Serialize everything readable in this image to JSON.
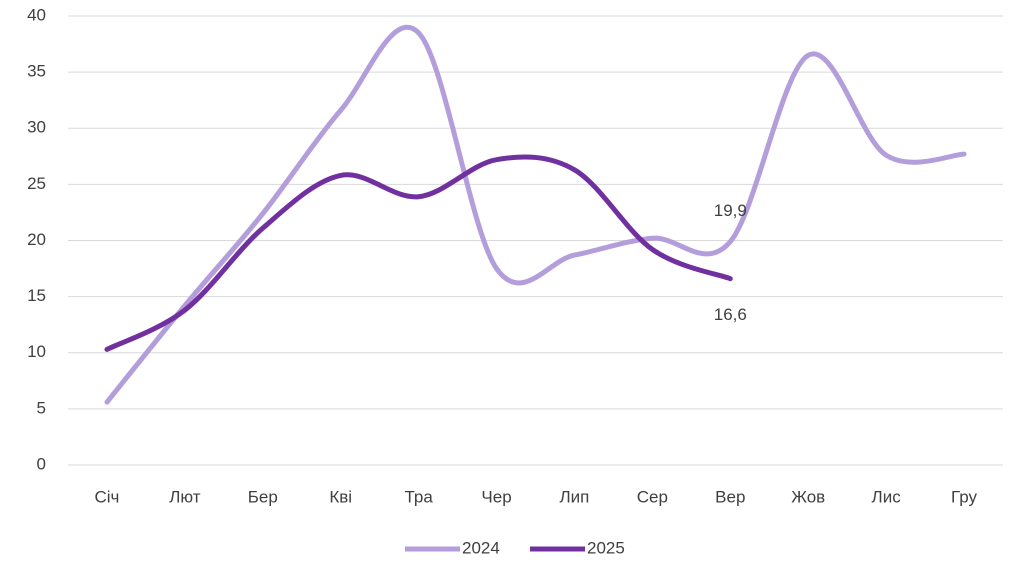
{
  "chart_data": {
    "type": "line",
    "categories": [
      "Січ",
      "Лют",
      "Бер",
      "Кві",
      "Тра",
      "Чер",
      "Лип",
      "Сер",
      "Вер",
      "Жов",
      "Лис",
      "Гру"
    ],
    "series": [
      {
        "name": "2024",
        "color": "#b39ddb",
        "values": [
          5.6,
          14.2,
          22.4,
          31.6,
          38.5,
          17.5,
          18.7,
          20.2,
          19.9,
          36.5,
          27.6,
          27.7
        ],
        "value_labels": [
          null,
          null,
          null,
          null,
          null,
          null,
          null,
          null,
          "19,9",
          null,
          null,
          null
        ]
      },
      {
        "name": "2025",
        "color": "#7030a0",
        "values": [
          10.3,
          13.8,
          21.1,
          25.8,
          23.9,
          27.2,
          26.3,
          19.2,
          16.6,
          null,
          null,
          null
        ],
        "value_labels": [
          null,
          null,
          null,
          null,
          null,
          null,
          null,
          null,
          "16,6",
          null,
          null,
          null
        ]
      }
    ],
    "ylim": [
      0,
      40
    ],
    "yticks": [
      0,
      5,
      10,
      15,
      20,
      25,
      30,
      35,
      40
    ],
    "grid": true,
    "smooth": true,
    "legend": "bottom"
  }
}
